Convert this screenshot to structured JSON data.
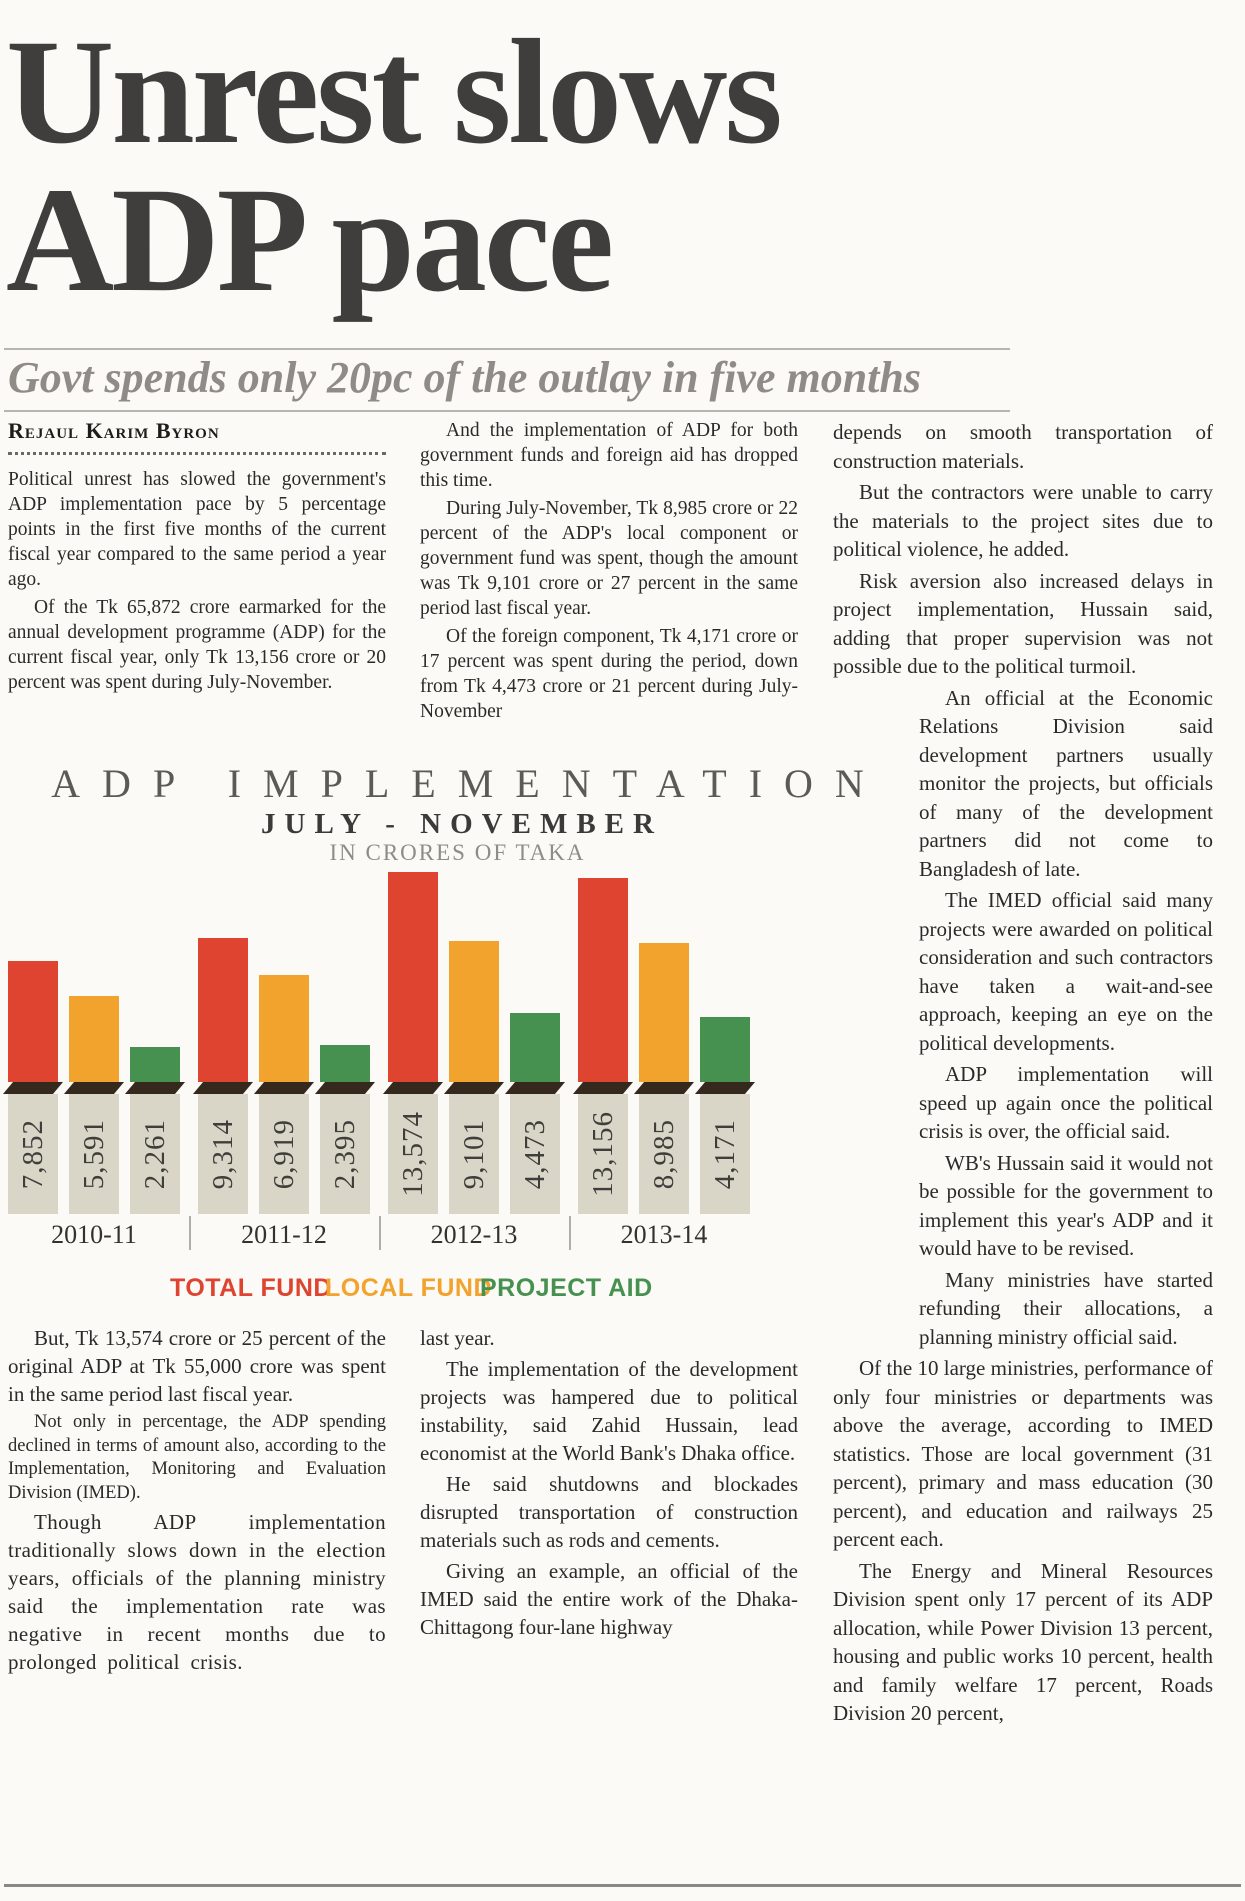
{
  "article": {
    "headline_line1": "Unrest slows",
    "headline_line2": "ADP pace",
    "subhead": "Govt spends only 20pc of the outlay in five months",
    "byline": "Rejaul Karim Byron"
  },
  "col1_top": [
    "Political unrest has slowed the government's ADP implementation pace by 5 percentage points in the first five months of the current fiscal year compared to the same period a year ago.",
    "Of the Tk 65,872 crore earmarked for the annual development programme (ADP) for the current fiscal year, only Tk 13,156 crore or 20 percent was spent during July-November."
  ],
  "col2_top": [
    "And the implementation of ADP for both government funds and foreign aid has dropped this time.",
    "During July-November, Tk 8,985 crore or 22 percent of the ADP's local component or government fund was spent, though the amount was Tk 9,101 crore or 27 percent in the same period last fiscal year.",
    "Of the foreign component, Tk 4,171 crore or 17 percent was spent during the period, down from Tk 4,473 crore or 21 percent during July-November"
  ],
  "col3": {
    "p1": "depends on smooth transportation of construction materials.",
    "p2": "But the contractors were unable to carry the materials to the project sites due to political violence, he added.",
    "p3": "Risk aversion also increased delays in project implementation, Hussain said, adding that proper supervision was not possible due to the political turmoil.",
    "p4": "An official at the Economic Relations Division said development partners usually monitor the projects, but officials of many of the development partners did not come to Bangladesh of late.",
    "p5": "The IMED official said many projects were awarded on political consideration and such contractors have taken a wait-and-see approach, keeping an eye on the political developments.",
    "p6": "ADP implementation will speed up again once the political crisis is over, the official said.",
    "p7": "WB's Hussain said it would not be possible for the government to implement this year's ADP and it would have to be revised.",
    "p8": "Many ministries have started refunding their allocations, a planning ministry official said.",
    "p9": "Of the 10 large ministries, performance of only four ministries or departments was above the average, according to IMED statistics. Those are local government (31 percent), primary and mass education (30 percent), and education and railways 25 percent each.",
    "p10": "The Energy and Mineral Resources Division spent only 17 percent of its ADP allocation, while Power Division 13 percent, housing and public works 10 percent, health and family welfare 17 percent, Roads Division 20 percent,"
  },
  "col1_bottom": [
    "But, Tk 13,574 crore or 25 percent of the original ADP at Tk 55,000 crore was spent in the same period last fiscal year.",
    "Not only in percentage, the ADP spending declined in terms of amount also, according to the Implementation, Monitoring and Evaluation Division (IMED).",
    "Though ADP implementation traditionally slows down in the election years, officials of the planning ministry said the implementation rate was negative in recent months due to prolonged political crisis."
  ],
  "col2_bottom": [
    "last year.",
    "The implementation of the development projects was hampered due to political instability, said Zahid Hussain, lead economist at the World Bank's Dhaka office.",
    "He said shutdowns and blockades disrupted transportation of construction materials such as rods and cements.",
    "Giving an example, an official of the IMED said the entire work of the Dhaka-Chittagong four-lane highway"
  ],
  "chart_data": {
    "type": "bar",
    "title": "ADP IMPLEMENTATION",
    "subtitle": "JULY - NOVEMBER",
    "unit_label": "IN CRORES OF TAKA",
    "categories": [
      "2010-11",
      "2011-12",
      "2012-13",
      "2013-14"
    ],
    "series": [
      {
        "name": "TOTAL FUND",
        "color": "#de4430",
        "values": [
          7852,
          9314,
          13574,
          13156
        ]
      },
      {
        "name": "LOCAL FUND",
        "color": "#f2a32d",
        "values": [
          5591,
          6919,
          9101,
          8985
        ]
      },
      {
        "name": "PROJECT AID",
        "color": "#46914f",
        "values": [
          2261,
          2395,
          4473,
          4171
        ]
      }
    ],
    "value_labels": [
      [
        "7,852",
        "5,591",
        "2,261"
      ],
      [
        "9,314",
        "6,919",
        "2,395"
      ],
      [
        "13,574",
        "9,101",
        "4,473"
      ],
      [
        "13,156",
        "8,985",
        "4,171"
      ]
    ],
    "ylim": [
      0,
      13574
    ],
    "grid": false,
    "legend_position": "bottom"
  }
}
